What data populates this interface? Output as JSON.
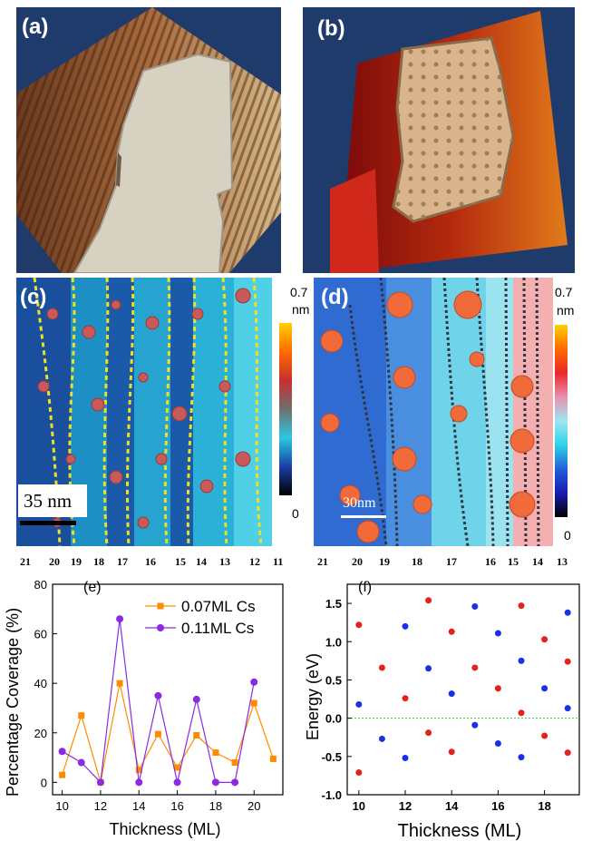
{
  "panels": {
    "a": {
      "label": "(a)"
    },
    "b": {
      "label": "(b)"
    },
    "c": {
      "label": "(c)",
      "scale_bar": "35 nm",
      "colorbar_max": "0.7",
      "colorbar_unit": "nm",
      "colorbar_min": "0",
      "thickness_labels": [
        "21",
        "20",
        "19",
        "18",
        "17",
        "16",
        "15",
        "14",
        "13",
        "12",
        "11"
      ]
    },
    "d": {
      "label": "(d)",
      "scale_bar": "30nm",
      "colorbar_max": "0.7",
      "colorbar_unit": "nm",
      "colorbar_min": "0",
      "thickness_labels": [
        "21",
        "20",
        "19",
        "18",
        "17",
        "16",
        "15",
        "14",
        "13"
      ]
    }
  },
  "chart_data": [
    {
      "panel_label": "(e)",
      "type": "line",
      "xlabel": "Thickness (ML)",
      "ylabel": "Percentage Coverage (%)",
      "xlim": [
        9.5,
        21.5
      ],
      "ylim": [
        -5,
        80
      ],
      "xticks": [
        "10",
        "12",
        "14",
        "16",
        "18",
        "20"
      ],
      "yticks": [
        "0",
        "20",
        "40",
        "60",
        "80"
      ],
      "legend_position": "top-right",
      "grid": false,
      "x": [
        10,
        11,
        12,
        13,
        14,
        15,
        16,
        17,
        18,
        19,
        20,
        21
      ],
      "series": [
        {
          "name": "0.07ML Cs",
          "color": "#ff8c00",
          "marker": "square",
          "x": [
            10,
            11,
            12,
            13,
            14,
            15,
            16,
            17,
            18,
            19,
            20,
            21
          ],
          "values": [
            3,
            27,
            0,
            40,
            5,
            19.5,
            6,
            19,
            12,
            8,
            32,
            9.5
          ]
        },
        {
          "name": "0.11ML Cs",
          "color": "#8a2be2",
          "marker": "circle",
          "x": [
            10,
            11,
            12,
            13,
            14,
            15,
            16,
            17,
            18,
            19,
            20
          ],
          "values": [
            12.5,
            8,
            0,
            66,
            0,
            35,
            0,
            33.5,
            0,
            0,
            40.5
          ]
        }
      ]
    },
    {
      "panel_label": "(f)",
      "type": "scatter",
      "xlabel": "Thickness (ML)",
      "ylabel": "Energy (eV)",
      "xlim": [
        9.5,
        19.5
      ],
      "ylim": [
        -1.0,
        1.75
      ],
      "xticks": [
        "10",
        "12",
        "14",
        "16",
        "18"
      ],
      "yticks": [
        "-1.0",
        "-0.5",
        "0.0",
        "0.5",
        "1.0",
        "1.5"
      ],
      "grid": false,
      "reference_line": {
        "y": 0,
        "color": "#33cc33"
      },
      "series": [
        {
          "color": "#e8201c",
          "x": [
            10,
            10,
            11,
            12,
            13,
            13,
            14,
            14,
            15,
            16,
            17,
            17,
            18,
            18,
            19,
            19
          ],
          "values": [
            1.22,
            -0.71,
            0.66,
            0.26,
            1.54,
            -0.19,
            1.13,
            -0.44,
            0.66,
            0.39,
            1.47,
            0.07,
            1.03,
            -0.23,
            0.74,
            -0.45
          ]
        },
        {
          "color": "#1c2fe8",
          "x": [
            10,
            11,
            12,
            12,
            13,
            14,
            15,
            15,
            16,
            16,
            17,
            17,
            18,
            19,
            19
          ],
          "values": [
            0.18,
            -0.27,
            1.2,
            -0.52,
            0.65,
            0.32,
            1.46,
            -0.09,
            1.11,
            -0.33,
            0.75,
            -0.51,
            0.39,
            1.38,
            0.13
          ]
        }
      ]
    }
  ]
}
